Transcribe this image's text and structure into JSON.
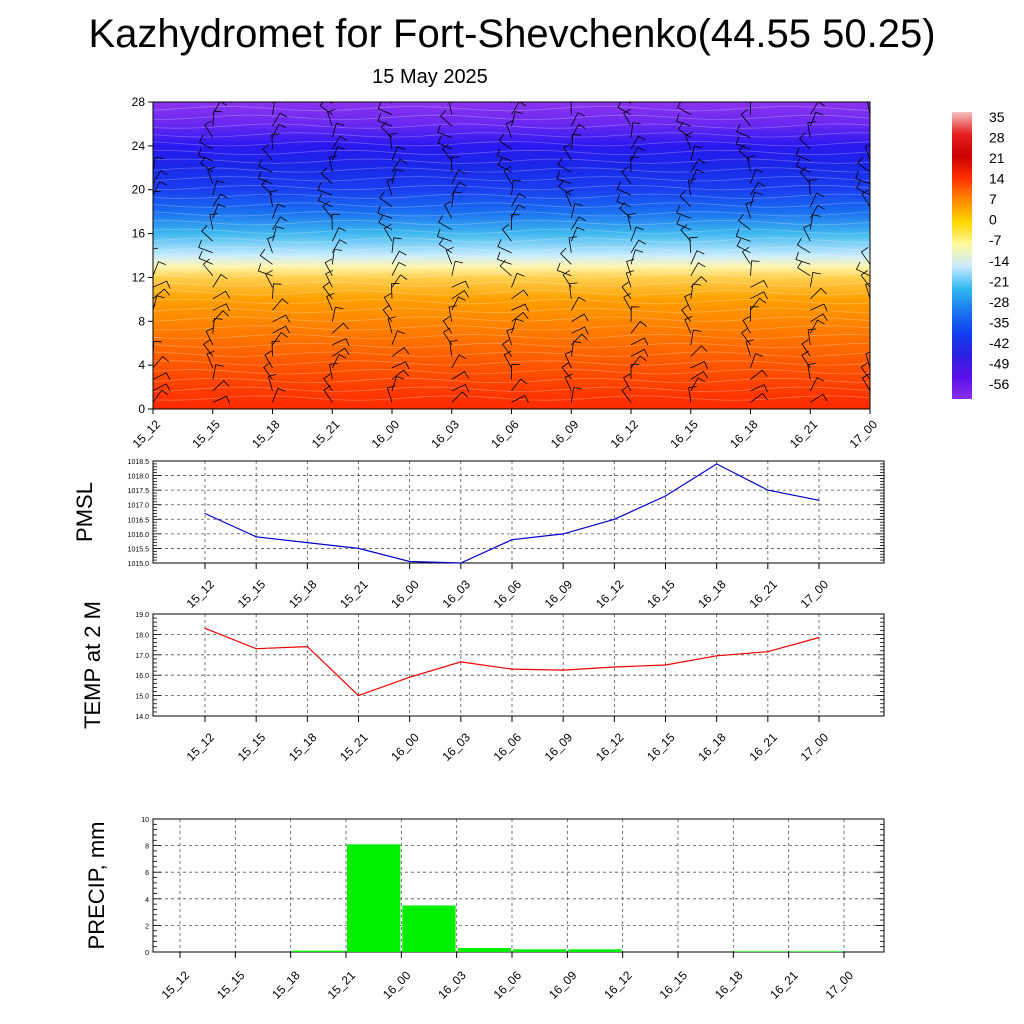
{
  "header": {
    "title": "Kazhydromet for Fort-Shevchenko(44.55 50.25)",
    "date": "15 May 2025"
  },
  "colors": {
    "pmsl_line": "#0000cc",
    "temp_line": "#ee0000",
    "precip_bar": "#00ee00",
    "wind_barb": "#000000",
    "grid": "#555555"
  },
  "chart_data": [
    {
      "type": "heatmap",
      "name": "height-time cross-section with wind barbs",
      "categories": [
        "15_12",
        "15_15",
        "15_18",
        "15_21",
        "16_00",
        "16_03",
        "16_06",
        "16_09",
        "16_12",
        "16_15",
        "16_18",
        "16_21",
        "17_00"
      ],
      "y_ticks": [
        "0",
        "4",
        "8",
        "12",
        "16",
        "20",
        "24",
        "28"
      ],
      "ylim": [
        0,
        28
      ],
      "colorbar": {
        "labels": [
          "35",
          "28",
          "21",
          "14",
          "7",
          "0",
          "-7",
          "-14",
          "-21",
          "-28",
          "-35",
          "-42",
          "-49",
          "-56"
        ],
        "colors": [
          "#f4c0c0",
          "#e62020",
          "#cc0000",
          "#ff3000",
          "#ff8a00",
          "#ffd700",
          "#fff8a0",
          "#c8eaff",
          "#30b8f0",
          "#1a78f0",
          "#1040f0",
          "#2a20e0",
          "#5a10e8",
          "#8a30f0"
        ]
      },
      "field_profile": [
        {
          "h": 0,
          "color": "#ff2a00"
        },
        {
          "h": 3,
          "color": "#ff4a00"
        },
        {
          "h": 7,
          "color": "#ff7a00"
        },
        {
          "h": 10,
          "color": "#ffa000"
        },
        {
          "h": 12,
          "color": "#ffd050"
        },
        {
          "h": 13,
          "color": "#fff6b0"
        },
        {
          "h": 14,
          "color": "#c8ecff"
        },
        {
          "h": 16,
          "color": "#40b8f0"
        },
        {
          "h": 18,
          "color": "#1a6ef0"
        },
        {
          "h": 20,
          "color": "#1a3ef0"
        },
        {
          "h": 22,
          "color": "#1a28e8"
        },
        {
          "h": 24,
          "color": "#2a18f0"
        },
        {
          "h": 26,
          "color": "#6a28f0"
        },
        {
          "h": 28,
          "color": "#8a34f0"
        }
      ],
      "grid": false
    },
    {
      "type": "line",
      "ylabel": "PMSL",
      "categories": [
        "15_12",
        "15_15",
        "15_18",
        "15_21",
        "16_00",
        "16_03",
        "16_06",
        "16_09",
        "16_12",
        "16_15",
        "16_18",
        "16_21",
        "17_00"
      ],
      "values": [
        1016.7,
        1015.9,
        1015.7,
        1015.5,
        1015.05,
        1015.0,
        1015.8,
        1016.0,
        1016.5,
        1017.3,
        1018.4,
        1017.5,
        1017.15
      ],
      "y_ticks": [
        "1015.0",
        "1015.5",
        "1016.0",
        "1016.5",
        "1017.0",
        "1017.5",
        "1018.0",
        "1018.5"
      ],
      "ylim": [
        1015.0,
        1018.5
      ],
      "grid": true
    },
    {
      "type": "line",
      "ylabel": "TEMP at 2 M",
      "categories": [
        "15_12",
        "15_15",
        "15_18",
        "15_21",
        "16_00",
        "16_03",
        "16_06",
        "16_09",
        "16_12",
        "16_15",
        "16_18",
        "16_21",
        "17_00"
      ],
      "values": [
        18.3,
        17.3,
        17.4,
        15.0,
        15.9,
        16.65,
        16.3,
        16.25,
        16.4,
        16.5,
        16.95,
        17.15,
        17.85
      ],
      "y_ticks": [
        "14.0",
        "15.0",
        "16.0",
        "17.0",
        "18.0",
        "19.0"
      ],
      "ylim": [
        14.0,
        19.0
      ],
      "grid": true
    },
    {
      "type": "bar",
      "ylabel": "PRECIP, mm",
      "categories": [
        "15_12",
        "15_15",
        "15_18",
        "15_21",
        "16_00",
        "16_03",
        "16_06",
        "16_09",
        "16_12",
        "16_15",
        "16_18",
        "16_21",
        "17_00"
      ],
      "values": [
        0,
        0,
        0.1,
        8.1,
        3.5,
        0.3,
        0.2,
        0.2,
        0,
        0,
        0.05,
        0.05,
        0
      ],
      "y_ticks": [
        "0",
        "2",
        "4",
        "6",
        "8",
        "10"
      ],
      "ylim": [
        0,
        10
      ],
      "grid": true
    }
  ]
}
